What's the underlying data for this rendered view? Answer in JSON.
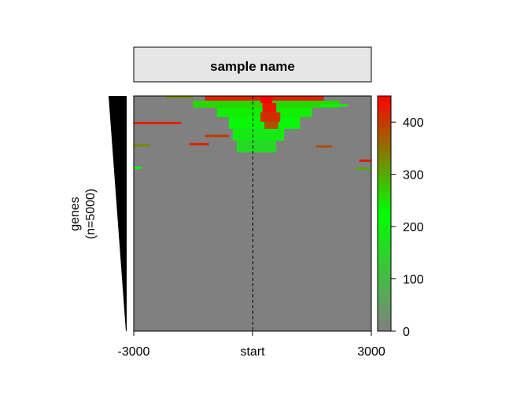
{
  "chart_data": {
    "type": "heatmap",
    "title": "sample name",
    "ylabel": [
      "genes",
      "(n=5000)"
    ],
    "xlabel": "",
    "x_ticks": [
      "-3000",
      "start",
      "3000"
    ],
    "x_range": [
      -3000,
      3000
    ],
    "n_rows": 5000,
    "colorbar": {
      "ticks": [
        0,
        100,
        200,
        300,
        400
      ],
      "range": [
        0,
        450
      ],
      "colors": [
        "#808080",
        "#00ff00",
        "#ff0000"
      ]
    },
    "background_value": 0,
    "center_line": "dashed",
    "signal_bands": [
      {
        "row_frac": [
          0.0,
          0.02
        ],
        "x": [
          -1200,
          1800
        ],
        "value": 420
      },
      {
        "row_frac": [
          0.02,
          0.05
        ],
        "x": [
          -1500,
          2200
        ],
        "value": 260
      },
      {
        "row_frac": [
          0.05,
          0.09
        ],
        "x": [
          -900,
          1500
        ],
        "value": 240
      },
      {
        "row_frac": [
          0.09,
          0.14
        ],
        "x": [
          -600,
          1200
        ],
        "value": 210
      },
      {
        "row_frac": [
          0.14,
          0.19
        ],
        "x": [
          -500,
          800
        ],
        "value": 190
      },
      {
        "row_frac": [
          0.19,
          0.24
        ],
        "x": [
          -400,
          600
        ],
        "value": 160
      },
      {
        "row_frac": [
          0.0,
          0.03
        ],
        "x": [
          200,
          500
        ],
        "value": 450
      },
      {
        "row_frac": [
          0.03,
          0.07
        ],
        "x": [
          250,
          600
        ],
        "value": 430
      },
      {
        "row_frac": [
          0.07,
          0.11
        ],
        "x": [
          200,
          700
        ],
        "value": 410
      },
      {
        "row_frac": [
          0.11,
          0.14
        ],
        "x": [
          300,
          650
        ],
        "value": 380
      },
      {
        "row_frac": [
          0.11,
          0.12
        ],
        "x": [
          -3000,
          -1800
        ],
        "value": 420
      },
      {
        "row_frac": [
          0.2,
          0.21
        ],
        "x": [
          -1600,
          -1100
        ],
        "value": 420
      },
      {
        "row_frac": [
          0.205,
          0.215
        ],
        "x": [
          -3000,
          -2600
        ],
        "value": 330
      },
      {
        "row_frac": [
          0.27,
          0.28
        ],
        "x": [
          2700,
          3000
        ],
        "value": 430
      },
      {
        "row_frac": [
          0.305,
          0.315
        ],
        "x": [
          2600,
          3000
        ],
        "value": 300
      },
      {
        "row_frac": [
          0.3,
          0.31
        ],
        "x": [
          -3000,
          -2800
        ],
        "value": 210
      },
      {
        "row_frac": [
          0.165,
          0.175
        ],
        "x": [
          -1200,
          -600
        ],
        "value": 400
      },
      {
        "row_frac": [
          0.21,
          0.22
        ],
        "x": [
          1600,
          2000
        ],
        "value": 380
      },
      {
        "row_frac": [
          0.0,
          0.01
        ],
        "x": [
          -2200,
          -1500
        ],
        "value": 330
      },
      {
        "row_frac": [
          0.035,
          0.045
        ],
        "x": [
          1700,
          2400
        ],
        "value": 200
      }
    ]
  }
}
